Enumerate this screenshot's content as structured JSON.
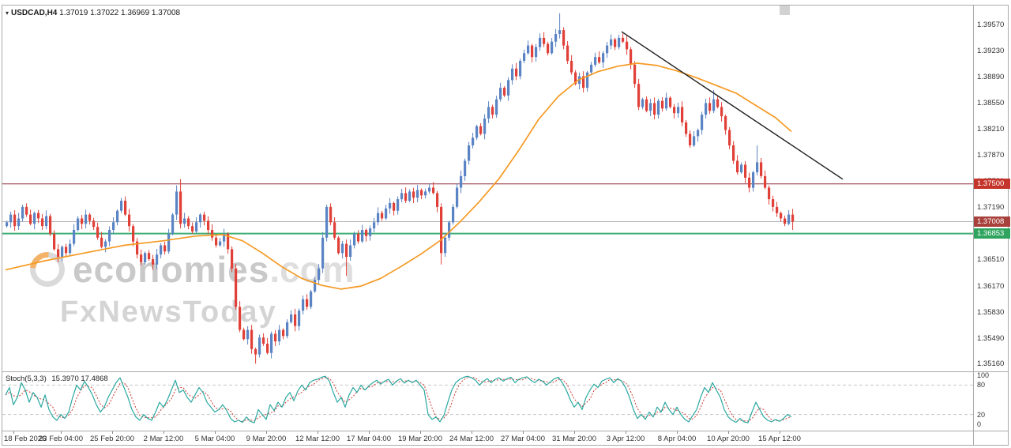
{
  "header": {
    "dropdown_icon": "▾",
    "symbol": "USDCAD,H4",
    "ohlc": "1.37019 1.37022 1.36969 1.37008"
  },
  "watermark": {
    "brand": "economies",
    "suffix": ".com",
    "tagline": "FxNewsToday"
  },
  "stoch_header": {
    "name": "Stoch(5,3,3)",
    "values": "15.3970 17.4868"
  },
  "chart_data": {
    "type": "candlestick",
    "symbol": "USDCAD",
    "timeframe": "H4",
    "y_axis": {
      "range": [
        1.3505,
        1.3982
      ],
      "ticks": [
        "1.39570",
        "1.39230",
        "1.38890",
        "1.38550",
        "1.38210",
        "1.37870",
        "1.37530",
        "1.37190",
        "1.36850",
        "1.36510",
        "1.36170",
        "1.35830",
        "1.35490",
        "1.35160"
      ]
    },
    "x_axis": {
      "labels": [
        {
          "label": "18 Feb 2026",
          "i": 2
        },
        {
          "label": "23 Feb 04:00",
          "i": 14
        },
        {
          "label": "25 Feb 20:00",
          "i": 27
        },
        {
          "label": "2 Mar 12:00",
          "i": 40
        },
        {
          "label": "5 Mar 04:00",
          "i": 53
        },
        {
          "label": "9 Mar 20:00",
          "i": 66
        },
        {
          "label": "12 Mar 12:00",
          "i": 79
        },
        {
          "label": "17 Mar 04:00",
          "i": 92
        },
        {
          "label": "19 Mar 20:00",
          "i": 105
        },
        {
          "label": "24 Mar 12:00",
          "i": 118
        },
        {
          "label": "27 Mar 04:00",
          "i": 131
        },
        {
          "label": "31 Mar 20:00",
          "i": 144
        },
        {
          "label": "3 Apr 12:00",
          "i": 157
        },
        {
          "label": "8 Apr 04:00",
          "i": 170
        },
        {
          "label": "10 Apr 20:00",
          "i": 183
        },
        {
          "label": "15 Apr 12:00",
          "i": 196
        }
      ]
    },
    "colors": {
      "up": "#5b84c4",
      "down": "#e04038",
      "ma": "#f59a23",
      "trendline": "#1a1a1a",
      "stoch_k": "#2aa8a0",
      "stoch_d": "#cc3b33",
      "level_line": "#c8c8c8"
    },
    "open_first": 1.3695,
    "closes": [
      1.37,
      1.371,
      1.3695,
      1.3705,
      1.372,
      1.371,
      1.3698,
      1.3712,
      1.3705,
      1.3695,
      1.3708,
      1.3685,
      1.3665,
      1.3655,
      1.3668,
      1.366,
      1.3672,
      1.369,
      1.3705,
      1.3698,
      1.371,
      1.3702,
      1.3694,
      1.368,
      1.3668,
      1.3675,
      1.369,
      1.37,
      1.3715,
      1.3728,
      1.371,
      1.3695,
      1.3675,
      1.3658,
      1.3648,
      1.366,
      1.3652,
      1.3645,
      1.3658,
      1.367,
      1.3662,
      1.3685,
      1.371,
      1.374,
      1.3698,
      1.3705,
      1.3695,
      1.3688,
      1.37,
      1.371,
      1.3702,
      1.369,
      1.368,
      1.367,
      1.3675,
      1.3685,
      1.3665,
      1.364,
      1.359,
      1.356,
      1.3548,
      1.356,
      1.3535,
      1.3528,
      1.355,
      1.3542,
      1.353,
      1.3555,
      1.3545,
      1.356,
      1.3552,
      1.357,
      1.358,
      1.3565,
      1.3585,
      1.36,
      1.359,
      1.361,
      1.3625,
      1.364,
      1.368,
      1.372,
      1.37,
      1.368,
      1.366,
      1.3672,
      1.3655,
      1.367,
      1.3685,
      1.3675,
      1.369,
      1.3682,
      1.3692,
      1.37,
      1.3712,
      1.3705,
      1.3718,
      1.3725,
      1.3715,
      1.373,
      1.3738,
      1.3728,
      1.374,
      1.3732,
      1.3742,
      1.3735,
      1.374,
      1.3745,
      1.3738,
      1.372,
      1.366,
      1.368,
      1.37,
      1.372,
      1.3745,
      1.376,
      1.378,
      1.38,
      1.381,
      1.3825,
      1.3815,
      1.3835,
      1.385,
      1.384,
      1.386,
      1.3875,
      1.3865,
      1.3885,
      1.39,
      1.389,
      1.391,
      1.392,
      1.393,
      1.3915,
      1.3928,
      1.394,
      1.3932,
      1.392,
      1.3935,
      1.3945,
      1.395,
      1.393,
      1.391,
      1.3895,
      1.388,
      1.389,
      1.3875,
      1.3895,
      1.3905,
      1.3915,
      1.3908,
      1.392,
      1.393,
      1.3938,
      1.3928,
      1.394,
      1.3935,
      1.3925,
      1.3905,
      1.388,
      1.385,
      1.386,
      1.3845,
      1.3855,
      1.384,
      1.3858,
      1.3848,
      1.3862,
      1.385,
      1.3842,
      1.385,
      1.383,
      1.3815,
      1.38,
      1.3812,
      1.382,
      1.384,
      1.3855,
      1.3845,
      1.386,
      1.385,
      1.3838,
      1.382,
      1.38,
      1.378,
      1.3765,
      1.3775,
      1.3758,
      1.3745,
      1.3765,
      1.3778,
      1.376,
      1.3745,
      1.373,
      1.372,
      1.3712,
      1.3705,
      1.3698,
      1.371,
      1.37008
    ],
    "overrides": [
      {
        "i": 43,
        "h": 1.3748
      },
      {
        "i": 44,
        "h": 1.3756
      },
      {
        "i": 63,
        "l": 1.3516
      },
      {
        "i": 86,
        "l": 1.363
      },
      {
        "i": 110,
        "l": 1.3645
      },
      {
        "i": 140,
        "h": 1.3972
      },
      {
        "i": 179,
        "h": 1.3872
      },
      {
        "i": 190,
        "h": 1.38
      },
      {
        "i": 199,
        "l": 1.369
      }
    ],
    "ma": [
      [
        0,
        1.3638
      ],
      [
        10,
        1.365
      ],
      [
        20,
        1.366
      ],
      [
        30,
        1.367
      ],
      [
        40,
        1.3676
      ],
      [
        48,
        1.3682
      ],
      [
        55,
        1.3684
      ],
      [
        60,
        1.3676
      ],
      [
        65,
        1.366
      ],
      [
        70,
        1.3642
      ],
      [
        75,
        1.3627
      ],
      [
        80,
        1.3618
      ],
      [
        85,
        1.3613
      ],
      [
        90,
        1.3617
      ],
      [
        95,
        1.3627
      ],
      [
        100,
        1.3642
      ],
      [
        105,
        1.3658
      ],
      [
        110,
        1.3676
      ],
      [
        115,
        1.37
      ],
      [
        120,
        1.3727
      ],
      [
        125,
        1.3757
      ],
      [
        130,
        1.3794
      ],
      [
        135,
        1.3834
      ],
      [
        140,
        1.3864
      ],
      [
        145,
        1.3885
      ],
      [
        150,
        1.3896
      ],
      [
        155,
        1.3903
      ],
      [
        160,
        1.3907
      ],
      [
        165,
        1.3904
      ],
      [
        170,
        1.3897
      ],
      [
        175,
        1.3888
      ],
      [
        180,
        1.3878
      ],
      [
        185,
        1.3868
      ],
      [
        190,
        1.3852
      ],
      [
        195,
        1.3836
      ],
      [
        199,
        1.3818
      ]
    ],
    "trendline": {
      "i1": 156,
      "p1": 1.3948,
      "i2": 212,
      "p2": 1.3756
    },
    "hlines": [
      {
        "name": "resistance-line",
        "price": 1.375,
        "color": "#8c2f39",
        "width": 1,
        "tag": "1.37500",
        "tag_bg": "#c5342b"
      },
      {
        "name": "current-price-line",
        "price": 1.37008,
        "color": "#b5b5b5",
        "width": 1,
        "tag": "1.37008",
        "tag_bg": "#a8413c"
      },
      {
        "name": "support-line",
        "price": 1.36853,
        "color": "#3fae76",
        "width": 2,
        "tag": "1.36853",
        "tag_bg": "#2fa45e"
      }
    ],
    "stoch": {
      "range": [
        0,
        100
      ],
      "levels": [
        80,
        20
      ],
      "axis_labels": [
        {
          "label": "100",
          "k": 100
        },
        {
          "label": "80",
          "k": 80
        },
        {
          "label": "20",
          "k": 20
        },
        {
          "label": "0",
          "k": 0
        }
      ],
      "k": [
        60,
        75,
        40,
        55,
        85,
        70,
        45,
        65,
        55,
        35,
        60,
        30,
        15,
        8,
        20,
        12,
        25,
        55,
        80,
        70,
        88,
        75,
        60,
        40,
        25,
        35,
        55,
        70,
        85,
        95,
        75,
        55,
        30,
        15,
        8,
        20,
        12,
        8,
        25,
        45,
        35,
        50,
        70,
        90,
        65,
        70,
        55,
        45,
        60,
        75,
        65,
        45,
        35,
        25,
        30,
        40,
        28,
        12,
        5,
        8,
        4,
        15,
        6,
        3,
        30,
        20,
        10,
        40,
        28,
        45,
        35,
        55,
        65,
        48,
        68,
        80,
        70,
        85,
        90,
        92,
        96,
        98,
        88,
        65,
        45,
        55,
        35,
        60,
        75,
        65,
        80,
        70,
        78,
        85,
        90,
        82,
        88,
        92,
        80,
        88,
        93,
        84,
        90,
        85,
        90,
        80,
        70,
        20,
        10,
        15,
        5,
        18,
        45,
        70,
        85,
        92,
        96,
        98,
        95,
        90,
        80,
        88,
        93,
        85,
        92,
        95,
        88,
        93,
        96,
        85,
        92,
        95,
        97,
        90,
        85,
        92,
        88,
        80,
        87,
        93,
        96,
        85,
        70,
        50,
        35,
        45,
        30,
        55,
        70,
        82,
        75,
        88,
        92,
        95,
        85,
        93,
        88,
        75,
        55,
        30,
        12,
        20,
        10,
        25,
        15,
        35,
        25,
        45,
        30,
        20,
        35,
        20,
        10,
        5,
        18,
        30,
        55,
        75,
        65,
        85,
        70,
        55,
        30,
        15,
        8,
        4,
        12,
        5,
        3,
        25,
        45,
        30,
        15,
        8,
        5,
        10,
        6,
        12,
        20,
        15.4
      ]
    }
  }
}
